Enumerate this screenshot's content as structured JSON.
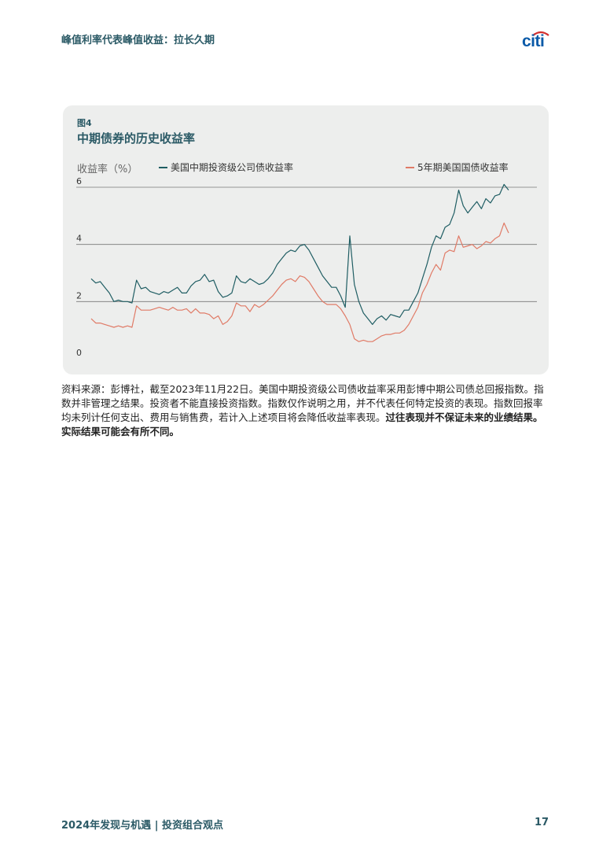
{
  "header": {
    "title": "峰值利率代表峰值收益：拉长久期",
    "logo_text": "citi"
  },
  "figure": {
    "label": "图4",
    "title": "中期债券的历史收益率"
  },
  "chart_data": {
    "type": "line",
    "ylabel": "收益率（%）",
    "ylim": [
      0,
      6
    ],
    "yticks": [
      "0",
      "2",
      "4",
      "6"
    ],
    "grid": "horizontal",
    "legend": "top",
    "series": [
      {
        "name": "美国中期投资级公司债收益率",
        "color": "#1f5d63",
        "values": [
          2.8,
          2.65,
          2.7,
          2.5,
          2.3,
          2.0,
          2.05,
          2.0,
          2.0,
          1.95,
          2.75,
          2.45,
          2.5,
          2.35,
          2.3,
          2.25,
          2.35,
          2.3,
          2.4,
          2.5,
          2.3,
          2.3,
          2.55,
          2.7,
          2.75,
          2.95,
          2.7,
          2.75,
          2.35,
          2.15,
          2.2,
          2.3,
          2.9,
          2.7,
          2.65,
          2.8,
          2.7,
          2.6,
          2.65,
          2.8,
          3.0,
          3.3,
          3.5,
          3.7,
          3.8,
          3.75,
          3.95,
          4.0,
          3.8,
          3.5,
          3.2,
          2.9,
          2.7,
          2.5,
          2.5,
          2.2,
          1.8,
          4.3,
          2.6,
          2.0,
          1.6,
          1.4,
          1.2,
          1.4,
          1.5,
          1.35,
          1.55,
          1.5,
          1.45,
          1.7,
          1.7,
          2.0,
          2.3,
          2.8,
          3.3,
          3.9,
          4.3,
          4.2,
          4.6,
          4.7,
          5.1,
          5.9,
          5.35,
          5.1,
          5.3,
          5.5,
          5.25,
          5.6,
          5.45,
          5.7,
          5.75,
          6.1,
          5.9
        ]
      },
      {
        "name": "5年期美国国债收益率",
        "color": "#e07a66",
        "values": [
          1.4,
          1.25,
          1.25,
          1.2,
          1.15,
          1.1,
          1.15,
          1.1,
          1.15,
          1.1,
          1.85,
          1.7,
          1.7,
          1.7,
          1.75,
          1.8,
          1.75,
          1.7,
          1.8,
          1.7,
          1.7,
          1.75,
          1.6,
          1.75,
          1.6,
          1.6,
          1.55,
          1.4,
          1.5,
          1.2,
          1.3,
          1.5,
          1.95,
          1.85,
          1.85,
          1.65,
          1.9,
          1.8,
          1.9,
          2.05,
          2.2,
          2.4,
          2.6,
          2.75,
          2.8,
          2.7,
          2.9,
          2.85,
          2.7,
          2.45,
          2.2,
          2.0,
          1.9,
          1.9,
          1.9,
          1.75,
          1.5,
          1.2,
          0.7,
          0.6,
          0.65,
          0.6,
          0.6,
          0.7,
          0.8,
          0.85,
          0.85,
          0.9,
          0.9,
          1.0,
          1.2,
          1.5,
          1.8,
          2.3,
          2.6,
          3.0,
          3.3,
          3.1,
          3.7,
          3.8,
          3.75,
          4.3,
          3.9,
          3.95,
          4.0,
          3.85,
          3.95,
          4.1,
          4.05,
          4.2,
          4.3,
          4.75,
          4.4
        ]
      }
    ]
  },
  "footnote": {
    "text": "资料来源：彭博社，截至2023年11月22日。美国中期投资级公司债收益率采用彭博中期公司债总回报指数。指数并非管理之结果。投资者不能直接投资指数。指数仅作说明之用，并不代表任何特定投资的表现。指数回报率均未列计任何支出、费用与销售费，若计入上述项目将会降低收益率表现。",
    "bold": "过往表现并不保证未来的业绩结果。实际结果可能会有所不同。"
  },
  "footer": {
    "left": "2024年发现与机遇 | 投资组合观点",
    "page": "17"
  }
}
